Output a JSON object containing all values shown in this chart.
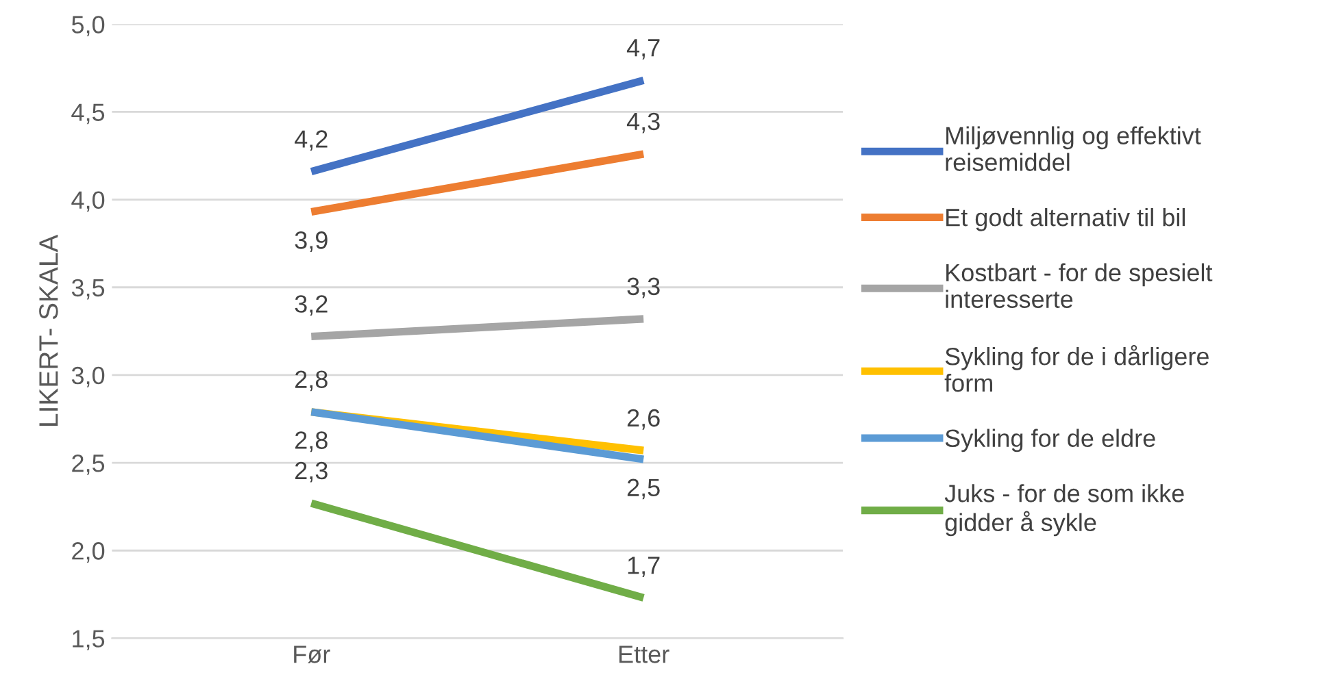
{
  "chart_data": {
    "type": "line",
    "ylabel": "LIKERT- SKALA",
    "categories": [
      "Før",
      "Etter"
    ],
    "series": [
      {
        "name": "Miljøvennlig og effektivt reisemiddel",
        "color": "#4472c4",
        "values": [
          4.16,
          4.68
        ],
        "value_labels": [
          "4,2",
          "4,7"
        ]
      },
      {
        "name": "Et godt alternativ til bil",
        "color": "#ed7d31",
        "values": [
          3.93,
          4.26
        ],
        "value_labels": [
          "3,9",
          "4,3"
        ]
      },
      {
        "name": "Kostbart - for de spesielt interesserte",
        "color": "#a5a5a5",
        "values": [
          3.22,
          3.32
        ],
        "value_labels": [
          "3,2",
          "3,3"
        ]
      },
      {
        "name": "Sykling for de i dårligere form",
        "color": "#ffc000",
        "values": [
          2.79,
          2.57
        ],
        "value_labels": [
          "2,8",
          "2,6"
        ]
      },
      {
        "name": "Sykling for de eldre",
        "color": "#5b9bd5",
        "values": [
          2.79,
          2.52
        ],
        "value_labels": [
          "2,8",
          "2,5"
        ]
      },
      {
        "name": "Juks - for de som ikke gidder å sykle",
        "color": "#70ad47",
        "values": [
          2.27,
          1.73
        ],
        "value_labels": [
          "2,3",
          "1,7"
        ]
      }
    ],
    "ylim": [
      1.5,
      5.0
    ],
    "yticks": [
      {
        "value": 1.5,
        "label": "1,5"
      },
      {
        "value": 2.0,
        "label": "2,0"
      },
      {
        "value": 2.5,
        "label": "2,5"
      },
      {
        "value": 3.0,
        "label": "3,0"
      },
      {
        "value": 3.5,
        "label": "3,5"
      },
      {
        "value": 4.0,
        "label": "4,0"
      },
      {
        "value": 4.5,
        "label": "4,5"
      },
      {
        "value": 5.0,
        "label": "5,0"
      }
    ],
    "grid": "y",
    "legend": "right",
    "marker": "none",
    "line_style": "solid"
  }
}
